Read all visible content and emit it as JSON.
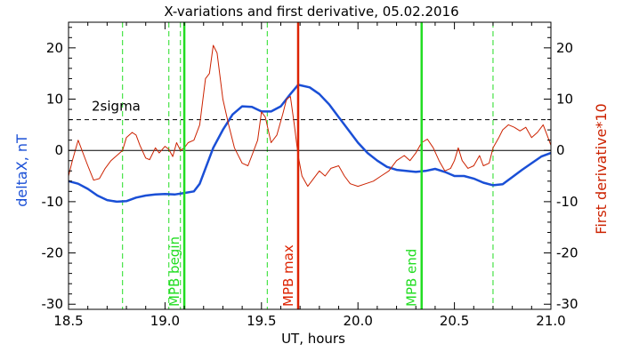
{
  "chart_data": {
    "type": "line",
    "title": "X-variations and first derivative, 05.02.2016",
    "xlabel": "UT, hours",
    "ylabel_left": "deltaX, nT",
    "ylabel_right": "First derivative*10",
    "xlim": [
      18.5,
      21.0
    ],
    "ylim": [
      -31,
      25
    ],
    "x_ticks": [
      18.5,
      19.0,
      19.5,
      20.0,
      20.5,
      21.0
    ],
    "x_tick_labels": [
      "18.5",
      "19.0",
      "19.5",
      "20.0",
      "20.5",
      "21.0"
    ],
    "y_ticks": [
      -30,
      -20,
      -10,
      0,
      10,
      20
    ],
    "y_tick_labels": [
      "-30",
      "-20",
      "-10",
      "0",
      "10",
      "20"
    ],
    "colors": {
      "deltaX": "#1a4fd6",
      "derivative": "#cc2200",
      "green": "#22dd22",
      "red_marker": "#dd2200",
      "black": "#000000"
    },
    "reference_lines": {
      "zero": 0,
      "two_sigma": {
        "value": 6,
        "label": "2sigma"
      }
    },
    "dashed_green_lines": [
      18.78,
      19.02,
      19.08,
      19.53,
      20.7
    ],
    "markers": [
      {
        "x": 19.1,
        "label": "MPB begin",
        "color": "#22dd22"
      },
      {
        "x": 19.69,
        "label": "MPB max",
        "color": "#dd2200"
      },
      {
        "x": 20.33,
        "label": "MPB end",
        "color": "#22dd22"
      }
    ],
    "series": [
      {
        "name": "deltaX, nT",
        "color": "#1a4fd6",
        "x": [
          18.5,
          18.55,
          18.6,
          18.65,
          18.7,
          18.75,
          18.8,
          18.85,
          18.9,
          18.95,
          19.0,
          19.05,
          19.1,
          19.15,
          19.18,
          19.22,
          19.25,
          19.3,
          19.35,
          19.4,
          19.45,
          19.5,
          19.55,
          19.6,
          19.65,
          19.69,
          19.75,
          19.8,
          19.85,
          19.9,
          19.95,
          20.0,
          20.05,
          20.1,
          20.15,
          20.2,
          20.25,
          20.3,
          20.35,
          20.4,
          20.45,
          20.5,
          20.55,
          20.6,
          20.65,
          20.7,
          20.75,
          20.8,
          20.85,
          20.9,
          20.95,
          21.0
        ],
        "y": [
          -6.0,
          -6.5,
          -7.5,
          -8.8,
          -9.7,
          -10.0,
          -9.9,
          -9.2,
          -8.8,
          -8.6,
          -8.5,
          -8.6,
          -8.3,
          -8.0,
          -6.5,
          -2.5,
          0.5,
          4.0,
          7.0,
          8.6,
          8.5,
          7.6,
          7.6,
          8.6,
          11.0,
          12.8,
          12.3,
          11.0,
          9.0,
          6.5,
          4.0,
          1.5,
          -0.5,
          -2.0,
          -3.2,
          -3.8,
          -4.0,
          -4.2,
          -4.0,
          -3.6,
          -4.2,
          -5.0,
          -5.0,
          -5.5,
          -6.3,
          -6.8,
          -6.6,
          -5.2,
          -3.8,
          -2.5,
          -1.2,
          -0.5
        ]
      },
      {
        "name": "First derivative*10",
        "color": "#cc2200",
        "x": [
          18.5,
          18.52,
          18.55,
          18.58,
          18.6,
          18.63,
          18.66,
          18.69,
          18.72,
          18.75,
          18.78,
          18.8,
          18.83,
          18.85,
          18.87,
          18.9,
          18.92,
          18.95,
          18.97,
          19.0,
          19.02,
          19.04,
          19.06,
          19.08,
          19.1,
          19.12,
          19.15,
          19.18,
          19.21,
          19.23,
          19.25,
          19.27,
          19.3,
          19.33,
          19.36,
          19.4,
          19.43,
          19.45,
          19.48,
          19.5,
          19.52,
          19.55,
          19.58,
          19.61,
          19.63,
          19.65,
          19.67,
          19.69,
          19.71,
          19.74,
          19.77,
          19.8,
          19.83,
          19.86,
          19.9,
          19.93,
          19.96,
          20.0,
          20.04,
          20.08,
          20.12,
          20.16,
          20.2,
          20.24,
          20.27,
          20.3,
          20.33,
          20.36,
          20.39,
          20.42,
          20.45,
          20.48,
          20.5,
          20.52,
          20.54,
          20.57,
          20.6,
          20.63,
          20.65,
          20.68,
          20.7,
          20.73,
          20.75,
          20.78,
          20.81,
          20.84,
          20.87,
          20.9,
          20.93,
          20.96,
          20.98,
          21.0
        ],
        "y": [
          -5.0,
          -2.0,
          2.0,
          -1.0,
          -3.0,
          -5.8,
          -5.5,
          -3.5,
          -2.0,
          -1.0,
          0.0,
          2.5,
          3.5,
          3.0,
          1.0,
          -1.5,
          -1.8,
          0.5,
          -0.5,
          0.8,
          0.2,
          -1.2,
          1.5,
          0.0,
          0.5,
          1.5,
          2.0,
          5.0,
          14.0,
          15.0,
          20.5,
          19.0,
          10.0,
          5.0,
          0.5,
          -2.5,
          -3.0,
          -1.0,
          2.0,
          7.5,
          6.5,
          1.5,
          3.0,
          7.0,
          10.0,
          10.5,
          5.0,
          -1.0,
          -5.0,
          -7.0,
          -5.5,
          -4.0,
          -5.0,
          -3.5,
          -3.0,
          -5.0,
          -6.5,
          -7.0,
          -6.5,
          -6.0,
          -5.0,
          -4.0,
          -2.0,
          -1.0,
          -2.0,
          -0.5,
          1.5,
          2.2,
          0.5,
          -2.0,
          -4.0,
          -3.5,
          -2.0,
          0.5,
          -2.0,
          -3.5,
          -3.0,
          -1.0,
          -3.0,
          -2.5,
          0.5,
          2.5,
          4.0,
          5.0,
          4.5,
          3.8,
          4.5,
          2.5,
          3.5,
          5.0,
          3.0,
          1.0
        ]
      }
    ]
  }
}
